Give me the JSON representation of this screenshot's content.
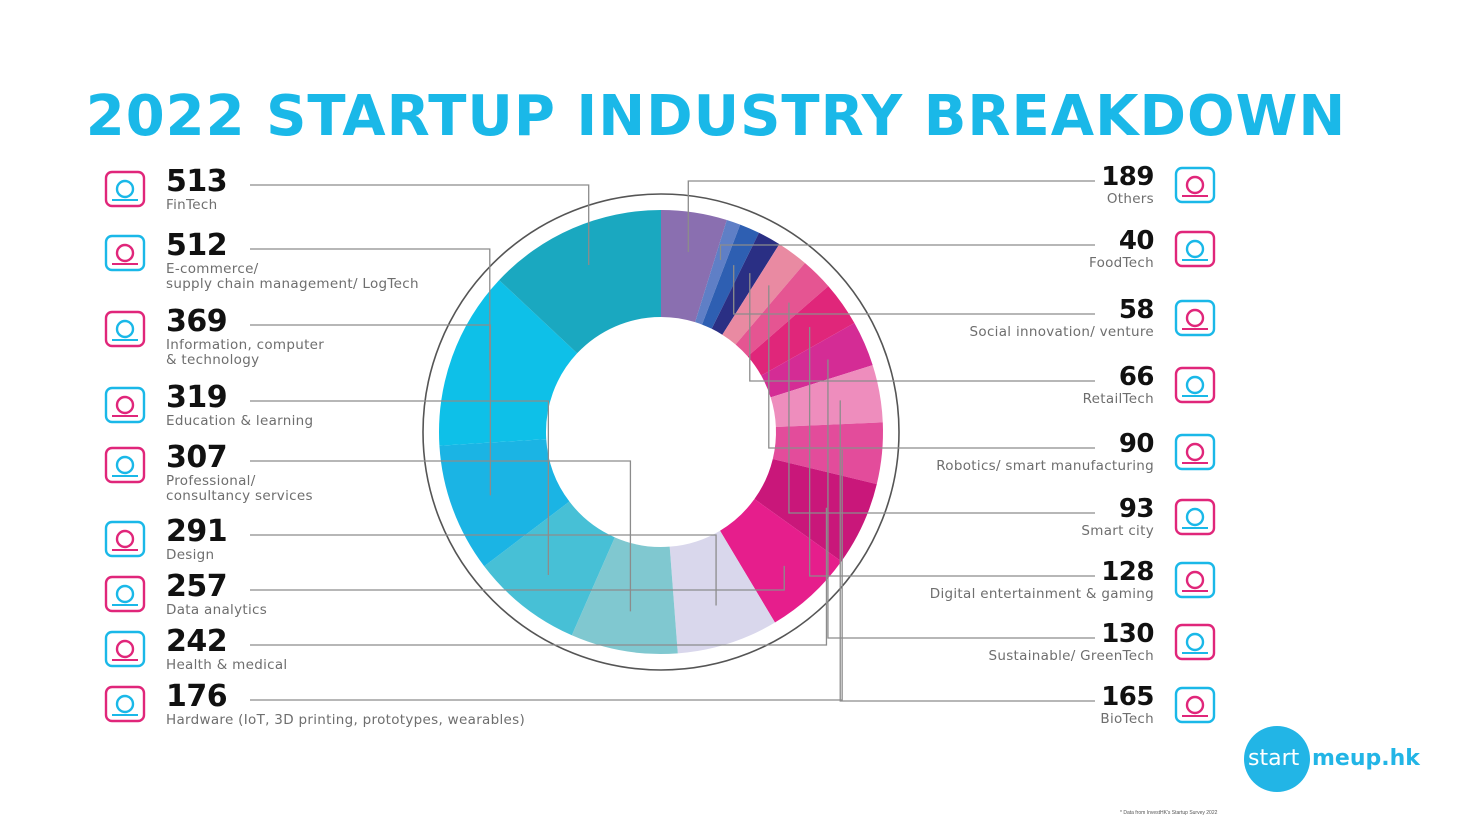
{
  "title": "2022 STARTUP INDUSTRY BREAKDOWN",
  "chart_data": {
    "type": "pie",
    "title": "2022 STARTUP INDUSTRY BREAKDOWN",
    "slices": [
      {
        "label": "Others",
        "value": 189,
        "color": "#8a6fb0",
        "side": "right",
        "icon": "globe-icon"
      },
      {
        "label": "FoodTech",
        "value": 40,
        "color": "#5f7fc6",
        "side": "right",
        "icon": "apple-circuit-icon"
      },
      {
        "label": "Social innovation/ venture",
        "value": 58,
        "color": "#2e5fb2",
        "side": "right",
        "icon": "chat-bubbles-icon"
      },
      {
        "label": "RetailTech",
        "value": 66,
        "color": "#2a2f84",
        "side": "right",
        "icon": "shopping-bag-icon"
      },
      {
        "label": "Robotics/ smart manufacturing",
        "value": 90,
        "color": "#e98aa2",
        "side": "right",
        "icon": "robot-arm-icon"
      },
      {
        "label": "Smart city",
        "value": 93,
        "color": "#e55592",
        "side": "right",
        "icon": "smart-building-icon"
      },
      {
        "label": "Digital entertainment & gaming",
        "value": 128,
        "color": "#e0267a",
        "side": "right",
        "icon": "gamepad-headset-icon"
      },
      {
        "label": "Sustainable/ GreenTech",
        "value": 130,
        "color": "#d42c95",
        "side": "right",
        "icon": "plant-flask-icon"
      },
      {
        "label": "BioTech",
        "value": 165,
        "color": "#ee8dbd",
        "side": "right",
        "icon": "atom-icon"
      },
      {
        "label": "Hardware (IoT, 3D printing, prototypes, wearables)",
        "value": 176,
        "color": "#e34c9b",
        "side": "left",
        "icon": "3d-box-icon"
      },
      {
        "label": "Health & medical",
        "value": 242,
        "color": "#c9177a",
        "side": "left",
        "icon": "heart-syringe-icon"
      },
      {
        "label": "Data analytics",
        "value": 257,
        "color": "#e61e8c",
        "side": "left",
        "icon": "magnifier-report-icon"
      },
      {
        "label": "Design",
        "value": 291,
        "color": "#d9d7ec",
        "side": "left",
        "icon": "design-board-icon"
      },
      {
        "label": "Professional/\nconsultancy services",
        "value": 307,
        "color": "#80c8d0",
        "side": "left",
        "icon": "consultants-icon"
      },
      {
        "label": "Education & learning",
        "value": 319,
        "color": "#47c0d6",
        "side": "left",
        "icon": "graduation-certificate-icon"
      },
      {
        "label": "Information, computer\n& technology",
        "value": 369,
        "color": "#1bb4e4",
        "side": "left",
        "icon": "devices-icon"
      },
      {
        "label": "E-commerce/\nsupply chain management/ LogTech",
        "value": 512,
        "color": "#0ec0e8",
        "side": "left",
        "icon": "flowchart-icon"
      },
      {
        "label": "FinTech",
        "value": 513,
        "color": "#1aa8c0",
        "side": "left",
        "icon": "dollar-coin-icon"
      }
    ],
    "legend": "sides",
    "grid": false
  },
  "colors": {
    "title": "#1ab8e8",
    "accent_pink": "#e0267a",
    "accent_blue": "#1ab8e8"
  },
  "logo": {
    "start": "start",
    "rest": "meup.hk"
  },
  "footnote": "* Data from InvestHK's Startup Survey 2022"
}
